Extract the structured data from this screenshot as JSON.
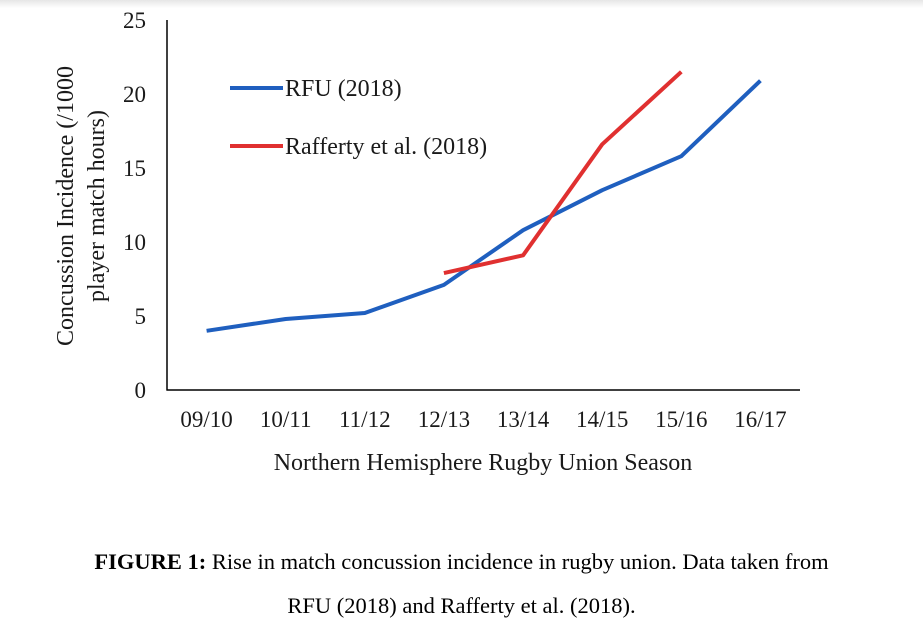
{
  "chart_data": {
    "type": "line",
    "categories": [
      "09/10",
      "10/11",
      "11/12",
      "12/13",
      "13/14",
      "14/15",
      "15/16",
      "16/17"
    ],
    "series": [
      {
        "name": "RFU (2018)",
        "color": "#1f5fbf",
        "values": [
          4.0,
          4.8,
          5.2,
          7.1,
          10.8,
          13.5,
          15.8,
          20.9
        ]
      },
      {
        "name": "Rafferty et al. (2018)",
        "color": "#e03030",
        "values": [
          null,
          null,
          null,
          7.9,
          9.1,
          16.6,
          21.5,
          null
        ]
      }
    ],
    "ylabel_line1": "Concussion Incidence (/1000",
    "ylabel_line2": "player match hours)",
    "xlabel": "Northern Hemisphere Rugby Union Season",
    "ylim": [
      0,
      25
    ],
    "yticks": [
      0,
      5,
      10,
      15,
      20,
      25
    ],
    "grid": false,
    "legend_position": "top-left"
  },
  "caption": {
    "label": "FIGURE 1:",
    "line1": "Rise in match concussion incidence in rugby union. Data taken from",
    "line2": "RFU (2018) and Rafferty et al. (2018)."
  }
}
